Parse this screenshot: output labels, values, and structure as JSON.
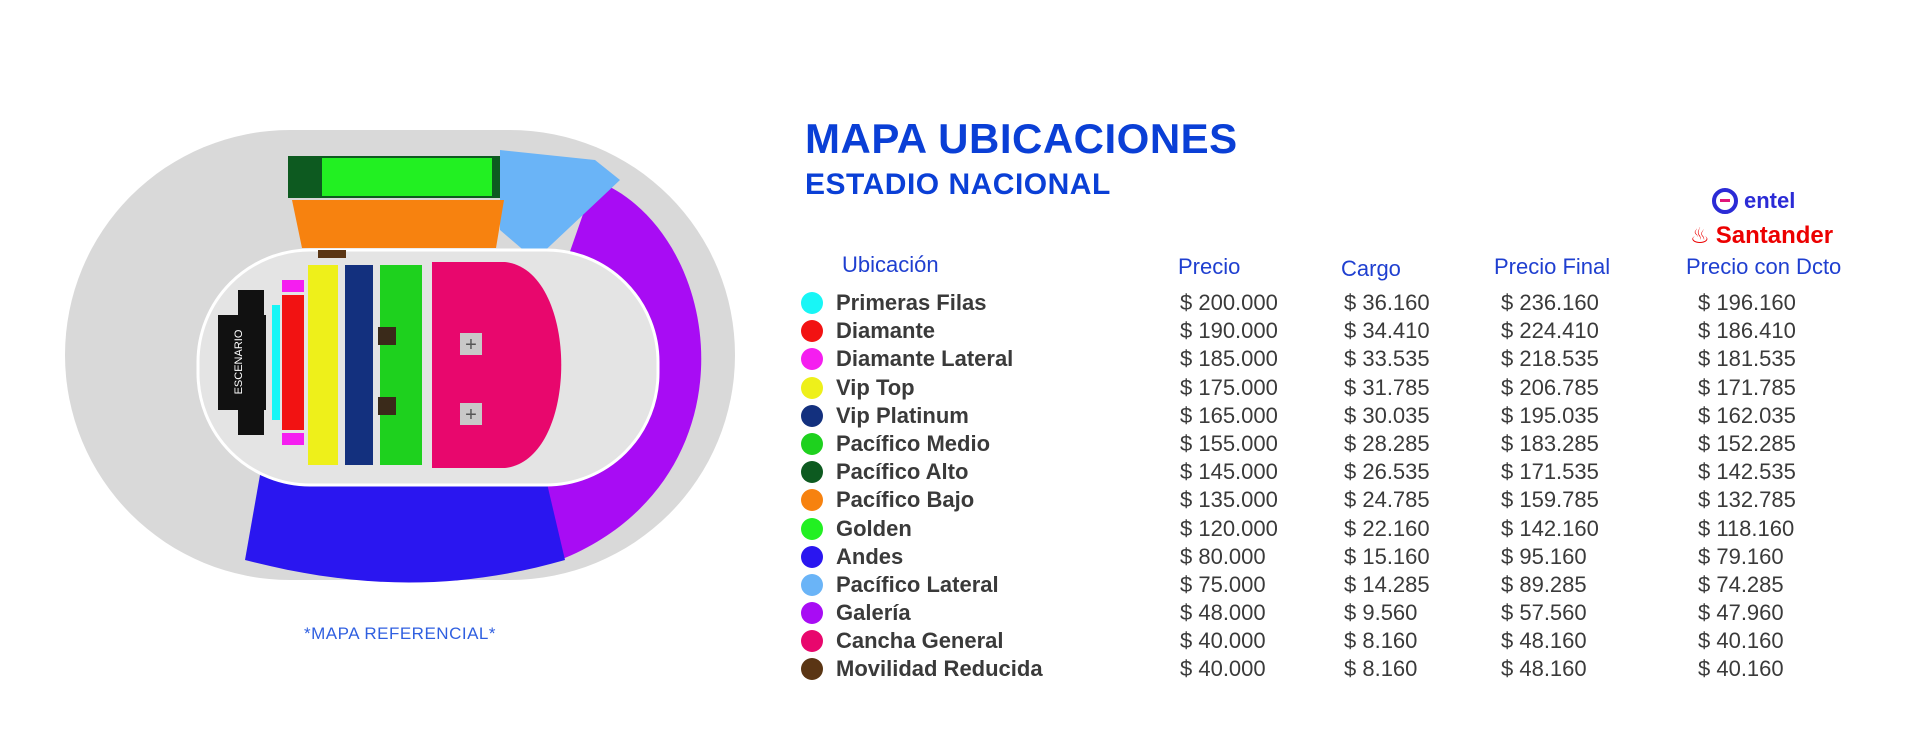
{
  "header": {
    "title": "MAPA UBICACIONES",
    "subtitle": "ESTADIO NACIONAL"
  },
  "brands": {
    "entel": "entel",
    "santander": "Santander"
  },
  "map": {
    "stage_label": "ESCENARIO",
    "note": "*MAPA REFERENCIAL*"
  },
  "table": {
    "headers": {
      "ubicacion": "Ubicación",
      "precio": "Precio",
      "cargo": "Cargo",
      "precio_final": "Precio Final",
      "precio_dcto": "Precio con Dcto"
    },
    "rows": [
      {
        "name": "Primeras Filas",
        "color": "#18f6f6",
        "precio": "$ 200.000",
        "cargo": "$ 36.160",
        "final": "$ 236.160",
        "dcto": "$ 196.160"
      },
      {
        "name": "Diamante",
        "color": "#f21212",
        "precio": "$ 190.000",
        "cargo": "$ 34.410",
        "final": "$ 224.410",
        "dcto": "$ 186.410"
      },
      {
        "name": "Diamante Lateral",
        "color": "#f51ef0",
        "precio": "$ 185.000",
        "cargo": "$ 33.535",
        "final": "$ 218.535",
        "dcto": "$ 181.535"
      },
      {
        "name": "Vip Top",
        "color": "#eef01a",
        "precio": "$ 175.000",
        "cargo": "$ 31.785",
        "final": "$ 206.785",
        "dcto": "$ 171.785"
      },
      {
        "name": "Vip Platinum",
        "color": "#13307e",
        "precio": "$ 165.000",
        "cargo": "$ 30.035",
        "final": "$ 195.035",
        "dcto": "$ 162.035"
      },
      {
        "name": "Pacífico Medio",
        "color": "#1ed11e",
        "precio": "$ 155.000",
        "cargo": "$ 28.285",
        "final": "$ 183.285",
        "dcto": "$ 152.285"
      },
      {
        "name": "Pacífico Alto",
        "color": "#0d5a20",
        "precio": "$ 145.000",
        "cargo": "$ 26.535",
        "final": "$ 171.535",
        "dcto": "$ 142.535"
      },
      {
        "name": "Pacífico Bajo",
        "color": "#f7820f",
        "precio": "$ 135.000",
        "cargo": "$ 24.785",
        "final": "$ 159.785",
        "dcto": "$ 132.785"
      },
      {
        "name": "Golden",
        "color": "#22f022",
        "precio": "$ 120.000",
        "cargo": "$ 22.160",
        "final": "$ 142.160",
        "dcto": "$ 118.160"
      },
      {
        "name": "Andes",
        "color": "#2a16f0",
        "precio": "$ 80.000",
        "cargo": "$ 15.160",
        "final": "$ 95.160",
        "dcto": "$ 79.160"
      },
      {
        "name": "Pacífico Lateral",
        "color": "#6ab4f7",
        "precio": "$ 75.000",
        "cargo": "$ 14.285",
        "final": "$ 89.285",
        "dcto": "$ 74.285"
      },
      {
        "name": "Galería",
        "color": "#a80cf4",
        "precio": "$ 48.000",
        "cargo": "$ 9.560",
        "final": "$ 57.560",
        "dcto": "$ 47.960"
      },
      {
        "name": "Cancha General",
        "color": "#e8076d",
        "precio": "$ 40.000",
        "cargo": "$ 8.160",
        "final": "$ 48.160",
        "dcto": "$ 40.160"
      },
      {
        "name": "Movilidad Reducida",
        "color": "#5a3514",
        "precio": "$ 40.000",
        "cargo": "$ 8.160",
        "final": "$ 48.160",
        "dcto": "$ 40.160"
      }
    ]
  }
}
